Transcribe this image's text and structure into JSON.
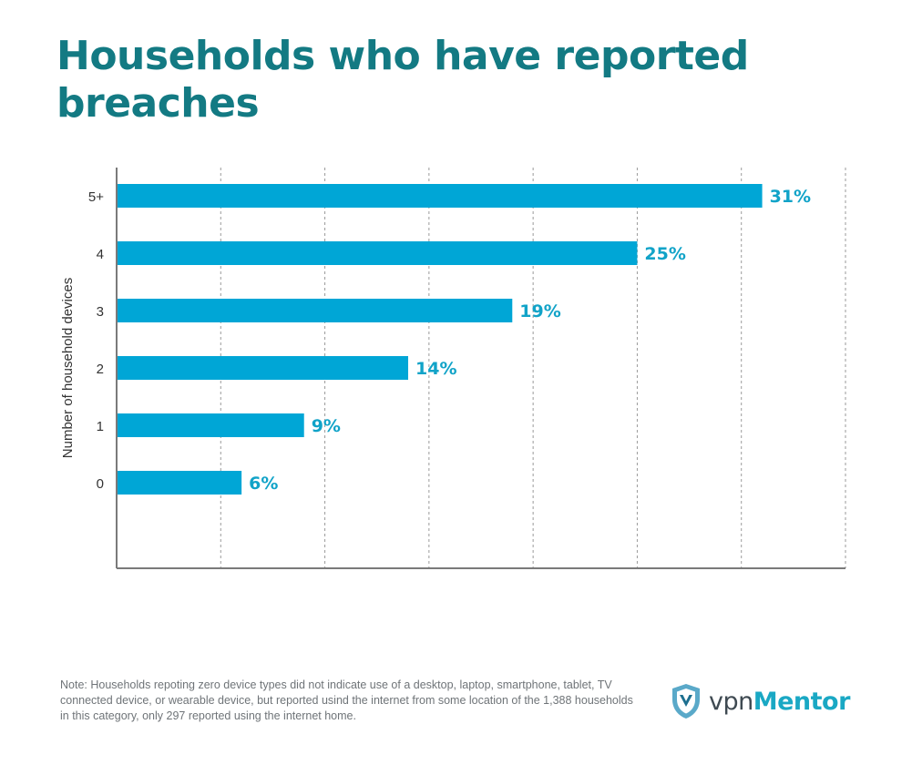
{
  "colors": {
    "title": "#137a83",
    "bar": "#00a6d6",
    "value_label": "#11a3c8",
    "axis": "#7a7a7a",
    "grid": "#9a9a9a"
  },
  "logo": {
    "icon": "shield-logo-icon",
    "part1": "vpn",
    "part2": "Mentor"
  },
  "note": "Note: Households repoting zero device types did not indicate use of a desktop, laptop, smartphone, tablet, TV connected device, or wearable device, but reported usind the internet from some location of the 1,388 households in this category, only 297 reported using the internet home.",
  "chart_data": {
    "type": "bar",
    "orientation": "horizontal",
    "title": "Households who have reported breaches",
    "ylabel": "Number of household devices",
    "xlabel": "",
    "categories": [
      "5+",
      "4",
      "3",
      "2",
      "1",
      "0"
    ],
    "values": [
      31,
      25,
      19,
      14,
      9,
      6
    ],
    "value_labels": [
      "31%",
      "25%",
      "19%",
      "14%",
      "9%",
      "6%"
    ],
    "unit": "%",
    "xlim": [
      0,
      35
    ],
    "gridlines": [
      5,
      10,
      15,
      20,
      25,
      30,
      35
    ],
    "grid": true,
    "legend": "none"
  }
}
